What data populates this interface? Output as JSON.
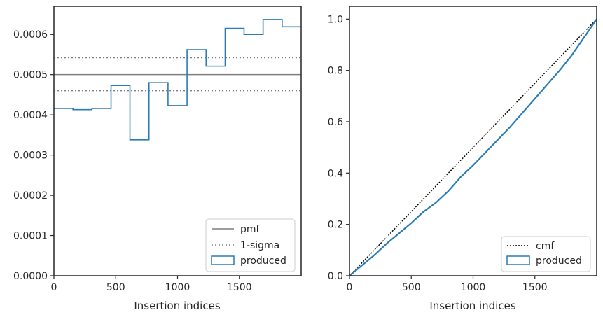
{
  "colors": {
    "produced": "#2a7db4",
    "pmf": "#7f7f7f",
    "sigma": "#7f7f7f",
    "cmf": "#000000",
    "axes": "#262626"
  },
  "chart_data": [
    {
      "type": "histogram",
      "xlabel": "Insertion indices",
      "ylabel": "",
      "xlim": [
        0,
        2000
      ],
      "ylim": [
        0,
        0.00067
      ],
      "xticks": [
        0,
        500,
        1000,
        1500
      ],
      "xtick_labels": [
        "0",
        "500",
        "1000",
        "1500"
      ],
      "yticks": [
        0,
        0.0001,
        0.0002,
        0.0003,
        0.0004,
        0.0005,
        0.0006
      ],
      "ytick_labels": [
        "0.0000",
        "0.0001",
        "0.0002",
        "0.0003",
        "0.0004",
        "0.0005",
        "0.0006"
      ],
      "grid": false,
      "legend_position": "bottom-right",
      "bin_edges": [
        0,
        154,
        308,
        462,
        615,
        769,
        923,
        1077,
        1231,
        1385,
        1538,
        1692,
        1846,
        2000
      ],
      "produced_values": [
        0.000416,
        0.000413,
        0.000416,
        0.000473,
        0.000338,
        0.00048,
        0.000423,
        0.000562,
        0.000521,
        0.000615,
        0.0006,
        0.000637,
        0.000619
      ],
      "pmf": 0.0005,
      "sigma_lower": 0.00046,
      "sigma_upper": 0.000542,
      "legend": [
        "pmf",
        "1-sigma",
        "produced"
      ]
    },
    {
      "type": "line",
      "xlabel": "Insertion indices",
      "ylabel": "",
      "xlim": [
        0,
        2000
      ],
      "ylim": [
        0,
        1.05
      ],
      "xticks": [
        0,
        500,
        1000,
        1500
      ],
      "xtick_labels": [
        "0",
        "500",
        "1000",
        "1500"
      ],
      "yticks": [
        0,
        0.2,
        0.4,
        0.6,
        0.8,
        1.0
      ],
      "ytick_labels": [
        "0.0",
        "0.2",
        "0.4",
        "0.6",
        "0.8",
        "1.0"
      ],
      "grid": false,
      "legend_position": "bottom-right",
      "cmf": {
        "x": [
          0,
          2000
        ],
        "y": [
          0,
          1.0
        ]
      },
      "produced": {
        "x": [
          0,
          100,
          200,
          300,
          400,
          500,
          600,
          700,
          800,
          900,
          1000,
          1100,
          1200,
          1300,
          1400,
          1500,
          1600,
          1700,
          1800,
          1900,
          2000
        ],
        "y": [
          0,
          0.04,
          0.08,
          0.125,
          0.165,
          0.205,
          0.25,
          0.285,
          0.33,
          0.385,
          0.43,
          0.48,
          0.53,
          0.58,
          0.635,
          0.69,
          0.745,
          0.8,
          0.86,
          0.93,
          1.0
        ]
      },
      "legend": [
        "cmf",
        "produced"
      ]
    }
  ]
}
